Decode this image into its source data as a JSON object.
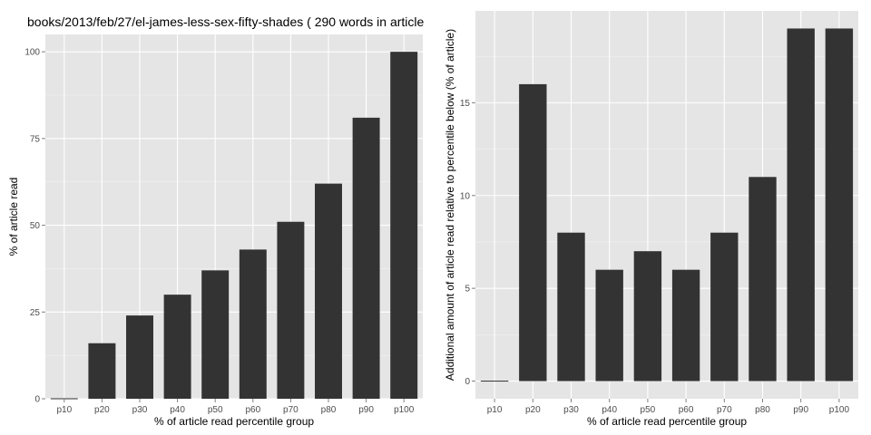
{
  "chart_data": [
    {
      "type": "bar",
      "title": "books/2013/feb/27/el-james-less-sex-fifty-shades ( 290 words in article",
      "xlabel": "% of article read percentile group",
      "ylabel": "% of article read",
      "categories": [
        "p10",
        "p20",
        "p30",
        "p40",
        "p50",
        "p60",
        "p70",
        "p80",
        "p90",
        "p100"
      ],
      "values": [
        0,
        16,
        24,
        30,
        37,
        43,
        51,
        62,
        81,
        100
      ],
      "ylim": [
        0,
        105
      ],
      "yticks": [
        0,
        25,
        50,
        75,
        100
      ],
      "grid": true,
      "bar_color": "#333333",
      "panel_color": "#e5e5e5"
    },
    {
      "type": "bar",
      "title": "",
      "xlabel": "% of article read percentile group",
      "ylabel": "Additional amount of article read relative to percentile below (% of article)",
      "categories": [
        "p10",
        "p20",
        "p30",
        "p40",
        "p50",
        "p60",
        "p70",
        "p80",
        "p90",
        "p100"
      ],
      "values": [
        0,
        16,
        8,
        6,
        7,
        6,
        8,
        11,
        19,
        19
      ],
      "ylim": [
        -0.95,
        19.95
      ],
      "yticks": [
        0,
        5,
        10,
        15
      ],
      "grid": true,
      "bar_color": "#333333",
      "panel_color": "#e5e5e5"
    }
  ]
}
